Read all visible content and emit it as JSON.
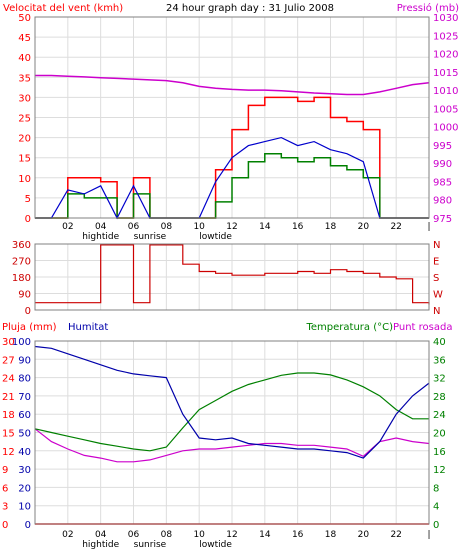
{
  "colors": {
    "background": "#ffffff",
    "frame": "#808080",
    "grid": "#dddddd",
    "wind_speed": "#ff0000",
    "wind_avg": "#0000cc",
    "wind_gust_low": "#008000",
    "pressure": "#cc00cc",
    "wind_direction": "#cc0000",
    "rain": "#ff0000",
    "humidity": "#0000aa",
    "temperature": "#008000",
    "dewpoint": "#cc00cc"
  },
  "chart_data": [
    {
      "type": "line",
      "title": "24 hour graph day : 31 Julio 2008",
      "ylabel": "Velocitat del vent (kmh)",
      "ylabel_right": "Pressió (mb)",
      "ylim": [
        0,
        50
      ],
      "ylim_right": [
        975,
        1030
      ],
      "yticks": [
        "0",
        "5",
        "10",
        "15",
        "20",
        "25",
        "30",
        "35",
        "40",
        "45",
        "50"
      ],
      "yticks_right": [
        "975",
        "980",
        "985",
        "990",
        "995",
        "1000",
        "1005",
        "1010",
        "1015",
        "1020",
        "1025",
        "1030"
      ],
      "xticks": [
        "02",
        "04",
        "06",
        "08",
        "10",
        "12",
        "14",
        "16",
        "18",
        "20",
        "22",
        "|"
      ],
      "x_annotations": [
        {
          "label": "hightide",
          "hour": 4
        },
        {
          "label": "sunrise",
          "hour": 7
        },
        {
          "label": "lowtide",
          "hour": 11
        }
      ],
      "hours": [
        0,
        1,
        2,
        3,
        4,
        5,
        6,
        7,
        8,
        9,
        10,
        11,
        12,
        13,
        14,
        15,
        16,
        17,
        18,
        19,
        20,
        21,
        22,
        23,
        24
      ],
      "series": [
        {
          "name": "wind_gust",
          "values": [
            0,
            0,
            10,
            10,
            9,
            0,
            10,
            0,
            0,
            0,
            0,
            12,
            22,
            28,
            30,
            30,
            29,
            30,
            25,
            24,
            22,
            0,
            0,
            0,
            0
          ]
        },
        {
          "name": "wind_avg",
          "values": [
            0,
            0,
            7,
            6,
            8,
            0,
            8,
            0,
            0,
            0,
            0,
            9,
            15,
            18,
            19,
            20,
            18,
            19,
            17,
            16,
            14,
            0,
            0,
            0,
            0
          ]
        },
        {
          "name": "wind_low",
          "values": [
            0,
            0,
            6,
            5,
            5,
            0,
            6,
            0,
            0,
            0,
            0,
            4,
            10,
            14,
            16,
            15,
            14,
            15,
            13,
            12,
            10,
            0,
            0,
            0,
            0
          ]
        },
        {
          "name": "pressure",
          "values": [
            1014,
            1014,
            1013.8,
            1013.6,
            1013.4,
            1013.2,
            1013,
            1012.8,
            1012.6,
            1012,
            1011,
            1010.5,
            1010.2,
            1010,
            1010,
            1009.8,
            1009.5,
            1009.2,
            1009,
            1008.8,
            1008.8,
            1009.5,
            1010.5,
            1011.5,
            1012
          ]
        }
      ]
    },
    {
      "type": "line",
      "ylabel": "",
      "ylim": [
        0,
        360
      ],
      "yticks": [
        "0",
        "90",
        "180",
        "270",
        "360"
      ],
      "yticks_right": [
        "N",
        "W",
        "S",
        "E",
        "N"
      ],
      "hours": [
        0,
        1,
        2,
        3,
        4,
        5,
        6,
        7,
        8,
        9,
        10,
        11,
        12,
        13,
        14,
        15,
        16,
        17,
        18,
        19,
        20,
        21,
        22,
        23,
        24
      ],
      "series": [
        {
          "name": "wind_direction",
          "values": [
            40,
            40,
            40,
            40,
            355,
            355,
            40,
            355,
            355,
            250,
            210,
            200,
            190,
            190,
            200,
            200,
            210,
            200,
            220,
            210,
            200,
            180,
            170,
            40,
            30
          ]
        }
      ]
    },
    {
      "type": "line",
      "ylabel": "Pluja (mm)",
      "ylabel_second": "Humitat",
      "ylabel_right": "Temperatura (°C)",
      "ylabel_right_second": "Punt rosada",
      "ylim_rain": [
        0,
        30
      ],
      "ylim_humidity": [
        0,
        100
      ],
      "ylim_temperature": [
        0,
        40
      ],
      "yticks_rain": [
        "0",
        "3",
        "6",
        "9",
        "12",
        "15",
        "18",
        "21",
        "24",
        "27",
        "30"
      ],
      "yticks_humidity": [
        "0",
        "10",
        "20",
        "30",
        "40",
        "50",
        "60",
        "70",
        "80",
        "90",
        "100"
      ],
      "yticks_right": [
        "0",
        "4",
        "8",
        "12",
        "16",
        "20",
        "24",
        "28",
        "32",
        "36",
        "40"
      ],
      "xticks": [
        "02",
        "04",
        "06",
        "08",
        "10",
        "12",
        "14",
        "16",
        "18",
        "20",
        "22",
        "|"
      ],
      "x_annotations": [
        {
          "label": "hightide",
          "hour": 4
        },
        {
          "label": "sunrise",
          "hour": 7
        },
        {
          "label": "lowtide",
          "hour": 11
        }
      ],
      "hours": [
        0,
        1,
        2,
        3,
        4,
        5,
        6,
        7,
        8,
        9,
        10,
        11,
        12,
        13,
        14,
        15,
        16,
        17,
        18,
        19,
        20,
        21,
        22,
        23,
        24
      ],
      "series": [
        {
          "name": "rain",
          "values": [
            0,
            0,
            0,
            0,
            0,
            0,
            0,
            0,
            0,
            0,
            0,
            0,
            0,
            0,
            0,
            0,
            0,
            0,
            0,
            0,
            0,
            0,
            0,
            0,
            0
          ]
        },
        {
          "name": "humidity",
          "values": [
            97,
            96,
            93,
            90,
            87,
            84,
            82,
            81,
            80,
            60,
            47,
            46,
            47,
            44,
            43,
            42,
            41,
            41,
            40,
            39,
            36,
            45,
            60,
            70,
            77
          ]
        },
        {
          "name": "temperature",
          "values": [
            20.8,
            20,
            19.2,
            18.4,
            17.6,
            17,
            16.4,
            16,
            16.8,
            21,
            25,
            27,
            29,
            30.5,
            31.5,
            32.5,
            33,
            33,
            32.6,
            31.5,
            30,
            28,
            25,
            23,
            23
          ]
        },
        {
          "name": "dewpoint",
          "values": [
            20.8,
            18,
            16.4,
            15,
            14.4,
            13.6,
            13.6,
            14,
            15,
            16,
            16.4,
            16.4,
            16.8,
            17.2,
            17.6,
            17.6,
            17.2,
            17.2,
            16.8,
            16.4,
            14.8,
            18,
            18.8,
            18,
            17.6
          ]
        }
      ]
    }
  ]
}
